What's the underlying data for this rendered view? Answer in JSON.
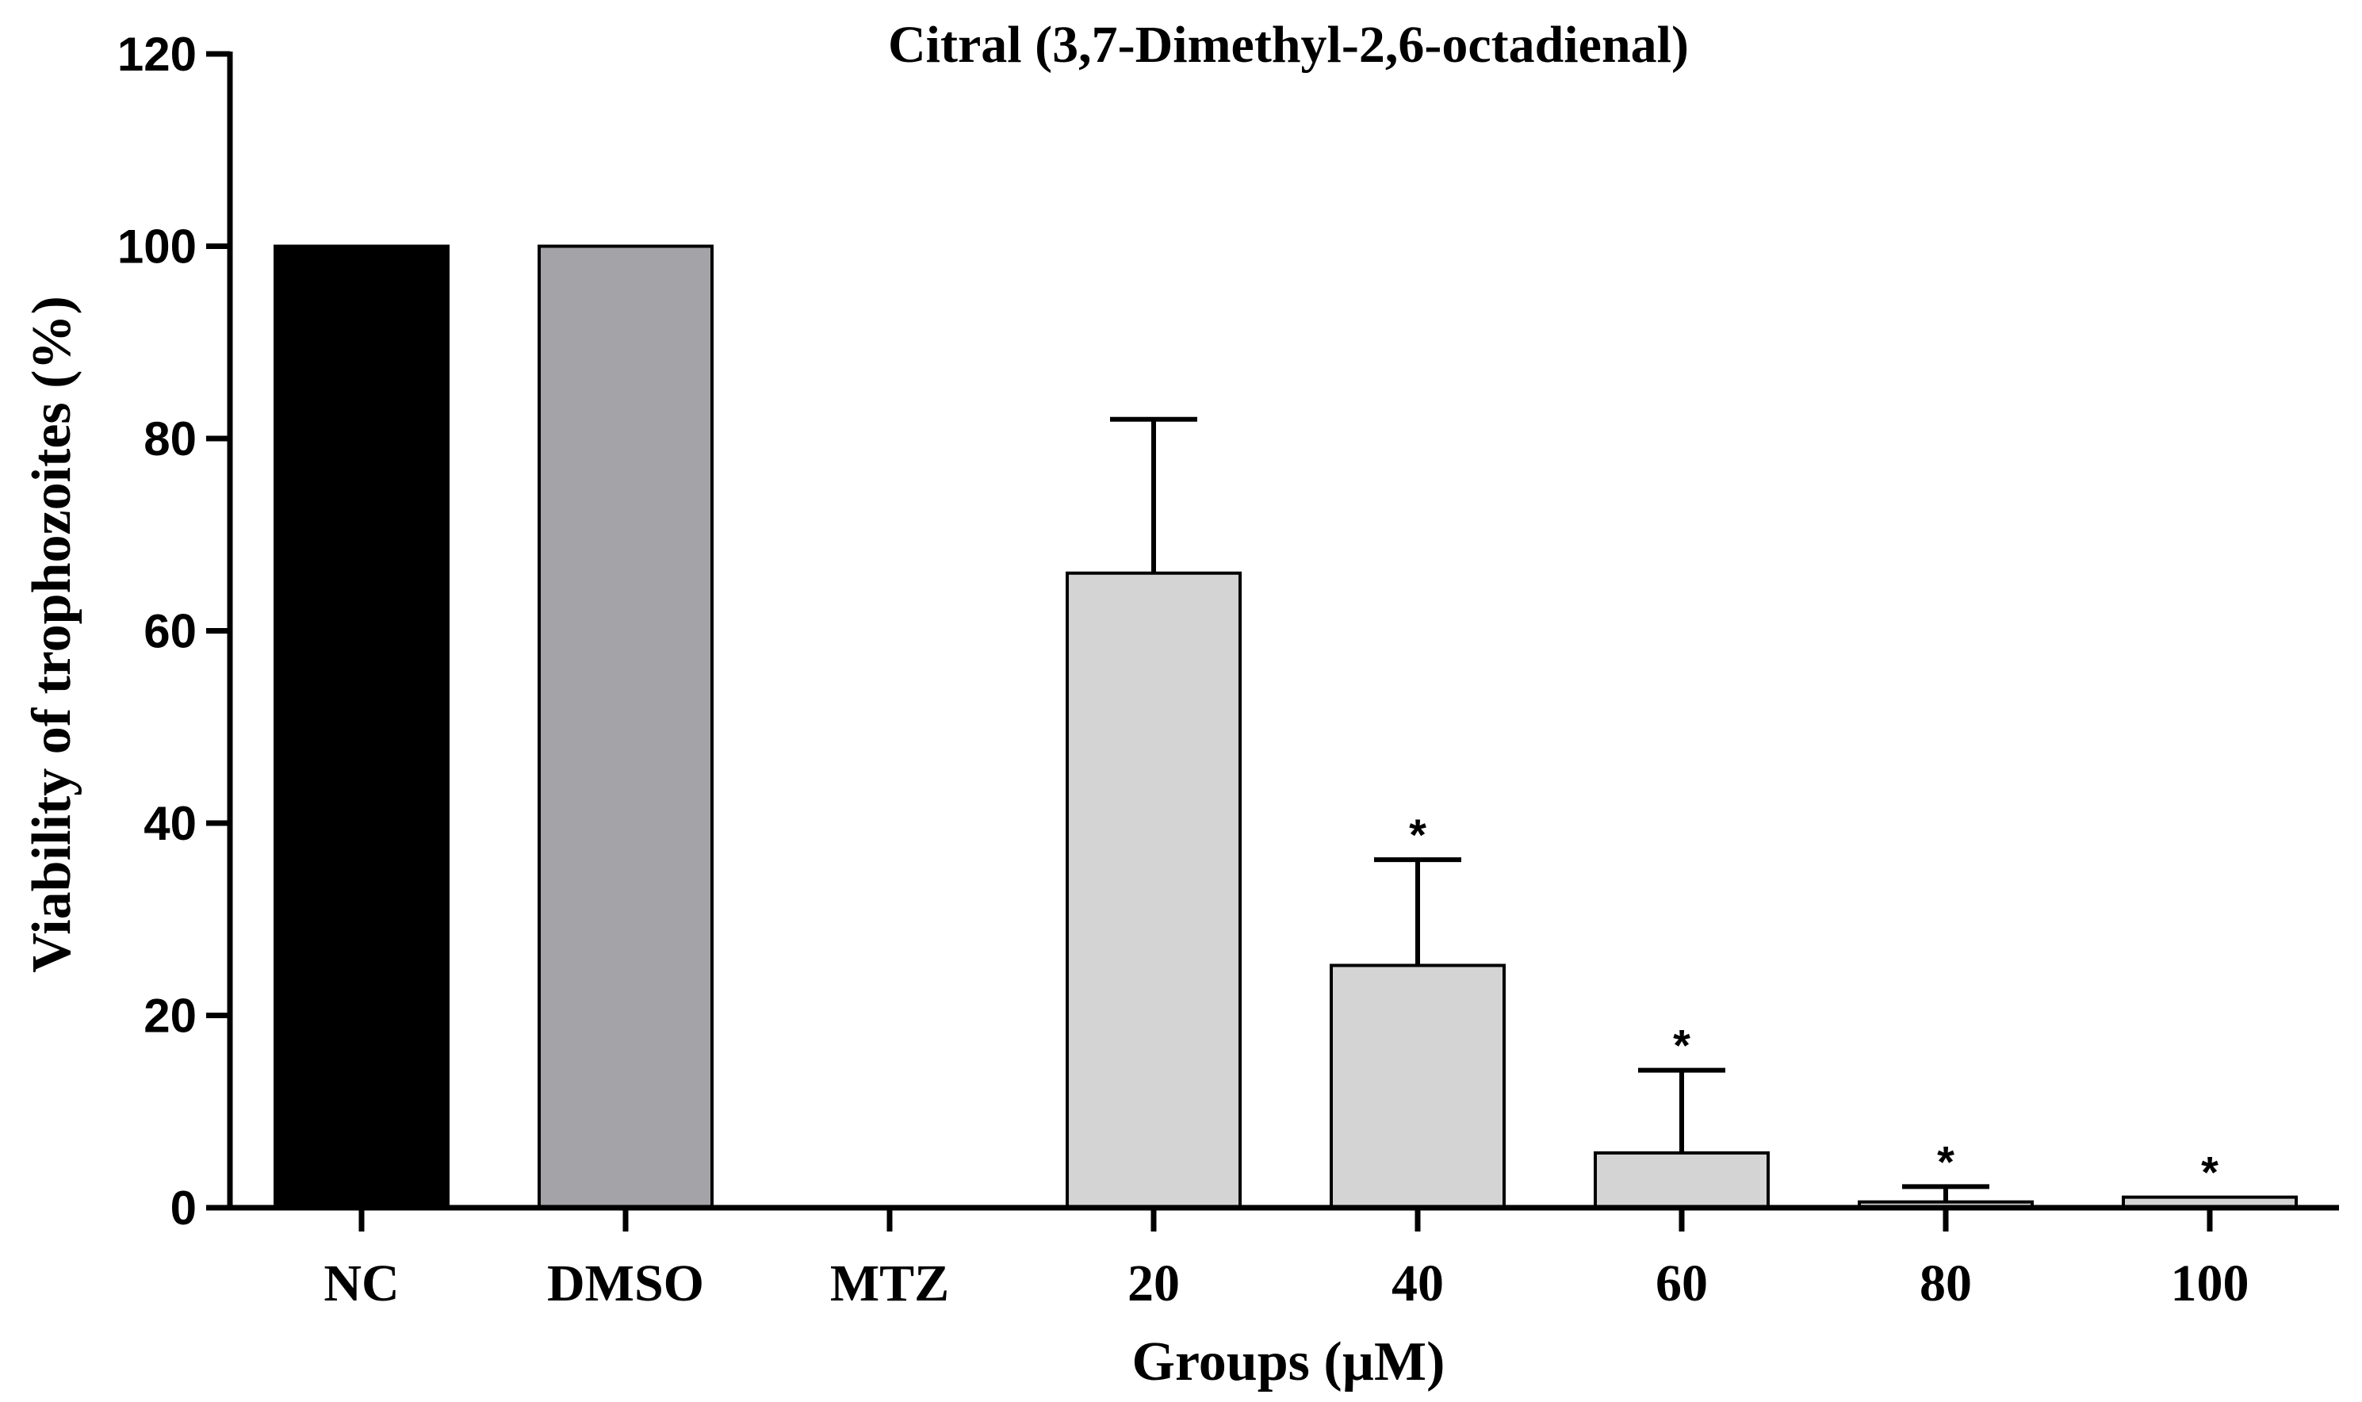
{
  "chart_data": {
    "type": "bar",
    "title": "Citral (3,7-Dimethyl-2,6-octadienal)",
    "xlabel": "Groups (µM)",
    "ylabel": "Viability of trophozoites (%)",
    "ylim": [
      0,
      120
    ],
    "yticks": [
      "0",
      "20",
      "40",
      "60",
      "80",
      "100",
      "120"
    ],
    "categories": [
      "NC",
      "DMSO",
      "MTZ",
      "20",
      "40",
      "60",
      "80",
      "100"
    ],
    "values": [
      100,
      100,
      0,
      66,
      25.2,
      5.7,
      0.6,
      1.1
    ],
    "errors": [
      0,
      0,
      0,
      16,
      11,
      8.6,
      1.6,
      0
    ],
    "significance": [
      "",
      "",
      "",
      "",
      "*",
      "*",
      "*",
      "*"
    ],
    "colors": [
      "#000000",
      "#a3a3a8",
      "#ffffff",
      "#d4d4d4",
      "#d4d4d4",
      "#d4d4d4",
      "#d4d4d4",
      "#d4d4d4"
    ],
    "grid": false
  }
}
